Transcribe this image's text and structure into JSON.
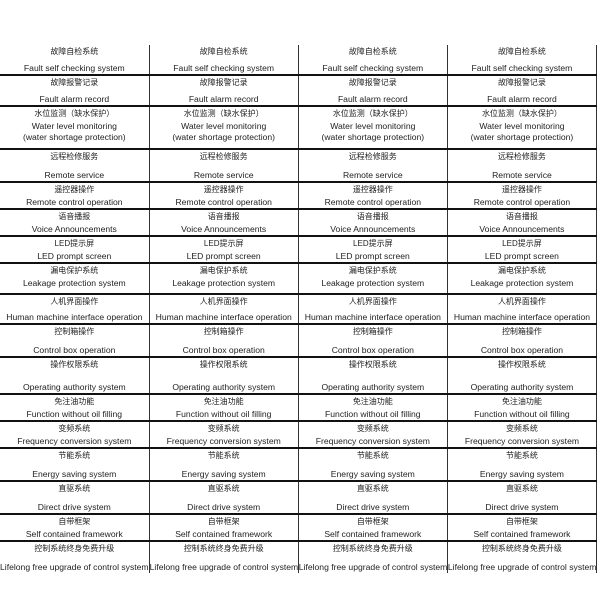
{
  "columns": 4,
  "rows": [
    {
      "zh": "故障自检系统",
      "en": "Fault self checking  system"
    },
    {
      "zh": "故障报警记录",
      "en": "Fault alarm record"
    },
    {
      "zh": "水位监测（缺水保护）",
      "en": "Water level monitoring",
      "en2": "(water shortage protection)"
    },
    {
      "zh": "远程检修服务",
      "en": "Remote service"
    },
    {
      "zh": "遥控器操作",
      "en": "Remote control operation"
    },
    {
      "zh": "语音播报",
      "en": "Voice Announcements"
    },
    {
      "zh": "LED提示屏",
      "en": "LED prompt screen"
    },
    {
      "zh": "漏电保护系统",
      "en": "Leakage protection system"
    },
    {
      "zh": "人机界面操作",
      "en": "Human machine interface operation"
    },
    {
      "zh": "控制箱操作",
      "en": "Control box operation"
    },
    {
      "zh": "操作权限系统",
      "en": "Operating authority system"
    },
    {
      "zh": "免注油功能",
      "en": "Function without oil filling"
    },
    {
      "zh": "变频系统",
      "en": "Frequency conversion system"
    },
    {
      "zh": "节能系统",
      "en": "Energy saving system"
    },
    {
      "zh": "直驱系统",
      "en": "Direct drive system"
    },
    {
      "zh": "自带框架",
      "en": "Self contained framework"
    },
    {
      "zh": "控制系统终身免费升级",
      "en": "Lifelong free upgrade of control system"
    }
  ]
}
